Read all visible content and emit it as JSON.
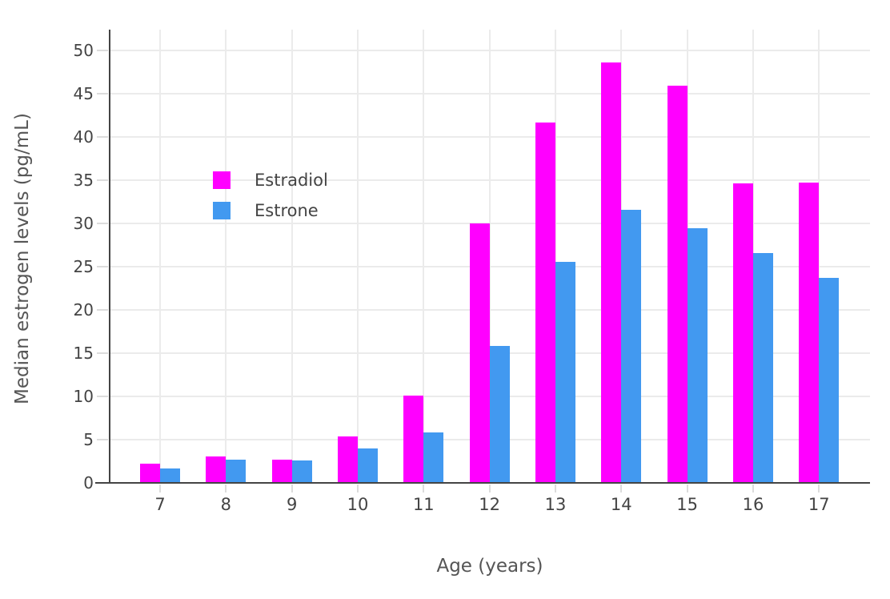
{
  "chart_data": {
    "type": "bar",
    "title": "",
    "xlabel": "Age (years)",
    "ylabel": "Median estrogen levels (pg/mL)",
    "categories": [
      7,
      8,
      9,
      10,
      11,
      12,
      13,
      14,
      15,
      16,
      17
    ],
    "series": [
      {
        "name": "Estradiol",
        "color": "#FF00FF",
        "values": [
          2.2,
          3.1,
          2.7,
          5.4,
          10.1,
          30.0,
          41.7,
          48.6,
          45.9,
          34.6,
          34.7
        ]
      },
      {
        "name": "Estrone",
        "color": "#4299F0",
        "values": [
          1.7,
          2.7,
          2.6,
          4.0,
          5.8,
          15.8,
          25.6,
          31.6,
          29.4,
          26.6,
          23.7
        ]
      }
    ],
    "yticks": [
      0,
      5,
      10,
      15,
      20,
      25,
      30,
      35,
      40,
      45,
      50
    ],
    "ylim": [
      0,
      52.4
    ],
    "grid": true,
    "legend_position": "inside-top-left",
    "style": {
      "background": "#FFFFFF",
      "axis_color": "#444444",
      "grid_color": "#EBEBEB",
      "tick_color": "#DCDCDC",
      "tick_text_color": "#444444",
      "title_text_color": "#555555"
    }
  }
}
